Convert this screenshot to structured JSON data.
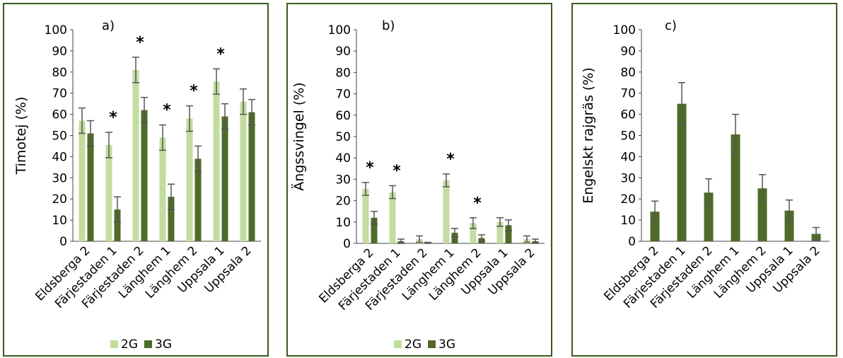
{
  "colors": {
    "2G": "#c3dca0",
    "3G": "#4f6b28",
    "error": "#555555",
    "frame": "#3a5a1e"
  },
  "chart_data": [
    {
      "type": "bar",
      "panel_label": "a)",
      "ylabel": "Timotej (%)",
      "ylim": [
        0,
        100
      ],
      "yticks": [
        "0",
        "10",
        "20",
        "30",
        "40",
        "50",
        "60",
        "70",
        "80",
        "90",
        "100"
      ],
      "categories": [
        "Eldsberga 2",
        "Färjestaden 1",
        "Färjestaden 2",
        "Länghem 1",
        "Länghem 2",
        "Uppsala 1",
        "Uppsala 2"
      ],
      "series": [
        {
          "name": "2G",
          "values": [
            57,
            45.5,
            81,
            49,
            58,
            75.5,
            66
          ],
          "errors": [
            6,
            6,
            6,
            6,
            6,
            6,
            6
          ]
        },
        {
          "name": "3G",
          "values": [
            51,
            15,
            62,
            21,
            39,
            59,
            61
          ],
          "errors": [
            6,
            6,
            6,
            6,
            6,
            6,
            6
          ]
        }
      ],
      "significance": [
        false,
        true,
        true,
        true,
        true,
        true,
        false
      ],
      "legend": [
        "2G",
        "3G"
      ]
    },
    {
      "type": "bar",
      "panel_label": "b)",
      "ylabel": "Ängssvingel (%)",
      "ylim": [
        0,
        100
      ],
      "yticks": [
        "0",
        "10",
        "20",
        "30",
        "40",
        "50",
        "60",
        "70",
        "80",
        "90",
        "100"
      ],
      "categories": [
        "Eldsberga 2",
        "Färjestaden 1",
        "Färjestaden 2",
        "Länghem 1",
        "Länghem 2",
        "Uppsala 1",
        "Uppsala 2"
      ],
      "series": [
        {
          "name": "2G",
          "values": [
            25.5,
            24,
            2,
            29.5,
            9.5,
            10,
            2
          ],
          "errors": [
            3,
            3,
            1.5,
            3,
            2.5,
            2,
            1.5
          ]
        },
        {
          "name": "3G",
          "values": [
            12,
            1,
            0.2,
            5,
            2.5,
            8.5,
            1
          ],
          "errors": [
            3,
            1,
            0.3,
            2,
            1.5,
            2.5,
            1
          ]
        }
      ],
      "significance": [
        true,
        true,
        false,
        true,
        true,
        false,
        false
      ],
      "legend": [
        "2G",
        "3G"
      ]
    },
    {
      "type": "bar",
      "panel_label": "c)",
      "ylabel": "Engelskt rajgräs (%)",
      "ylim": [
        0,
        100
      ],
      "yticks": [
        "0",
        "10",
        "20",
        "30",
        "40",
        "50",
        "60",
        "70",
        "80",
        "90",
        "100"
      ],
      "categories": [
        "Eldsberga 2",
        "Färjestaden 1",
        "Färjestaden 2",
        "Länghem 1",
        "Länghem 2",
        "Uppsala 1",
        "Uppsala 2"
      ],
      "series": [
        {
          "name": "3G",
          "values": [
            14,
            65,
            23,
            50.5,
            25,
            14.5,
            3.5
          ],
          "errors": [
            5,
            10,
            6.5,
            9.5,
            6.5,
            5,
            3
          ]
        }
      ],
      "significance": [
        false,
        false,
        false,
        false,
        false,
        false,
        false
      ],
      "legend": []
    }
  ]
}
